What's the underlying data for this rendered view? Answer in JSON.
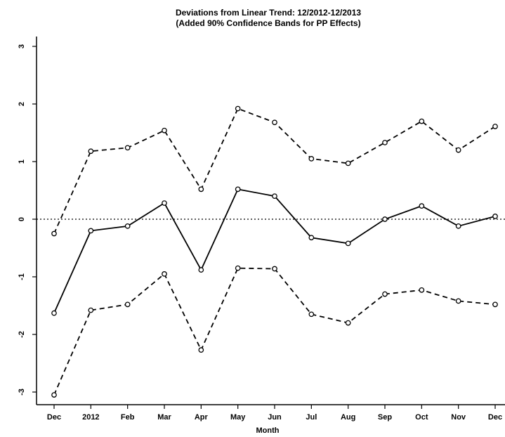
{
  "chart_data": {
    "type": "line",
    "title_line1": "Deviations from Linear Trend: 12/2012-12/2013",
    "title_line2": "(Added 90% Confidence Bands for PP Effects)",
    "xlabel": "Month",
    "ylabel": "",
    "categories": [
      "Dec",
      "2012",
      "Feb",
      "Mar",
      "Apr",
      "May",
      "Jun",
      "Jul",
      "Aug",
      "Sep",
      "Oct",
      "Nov",
      "Dec"
    ],
    "ylim": [
      -3.2,
      3.1
    ],
    "yticks": [
      -3,
      -2,
      -1,
      0,
      1,
      2,
      3
    ],
    "series": [
      {
        "role": "estimate",
        "style": "solid",
        "values": [
          -1.63,
          -0.2,
          -0.12,
          0.28,
          -0.88,
          0.52,
          0.4,
          -0.32,
          -0.42,
          0.0,
          0.23,
          -0.12,
          0.05
        ]
      },
      {
        "role": "upper",
        "style": "dashed",
        "values": [
          -0.25,
          1.18,
          1.24,
          1.54,
          0.52,
          1.92,
          1.68,
          1.05,
          0.97,
          1.33,
          1.7,
          1.2,
          1.61
        ]
      },
      {
        "role": "lower",
        "style": "dashed",
        "values": [
          -3.05,
          -1.58,
          -1.48,
          -0.95,
          -2.27,
          -0.85,
          -0.86,
          -1.65,
          -1.8,
          -1.3,
          -1.23,
          -1.42,
          -1.48
        ]
      }
    ],
    "reference_line": {
      "y": 0,
      "style": "dotted"
    },
    "grid": false,
    "colors": {
      "line": "#000000",
      "background": "#ffffff"
    }
  }
}
